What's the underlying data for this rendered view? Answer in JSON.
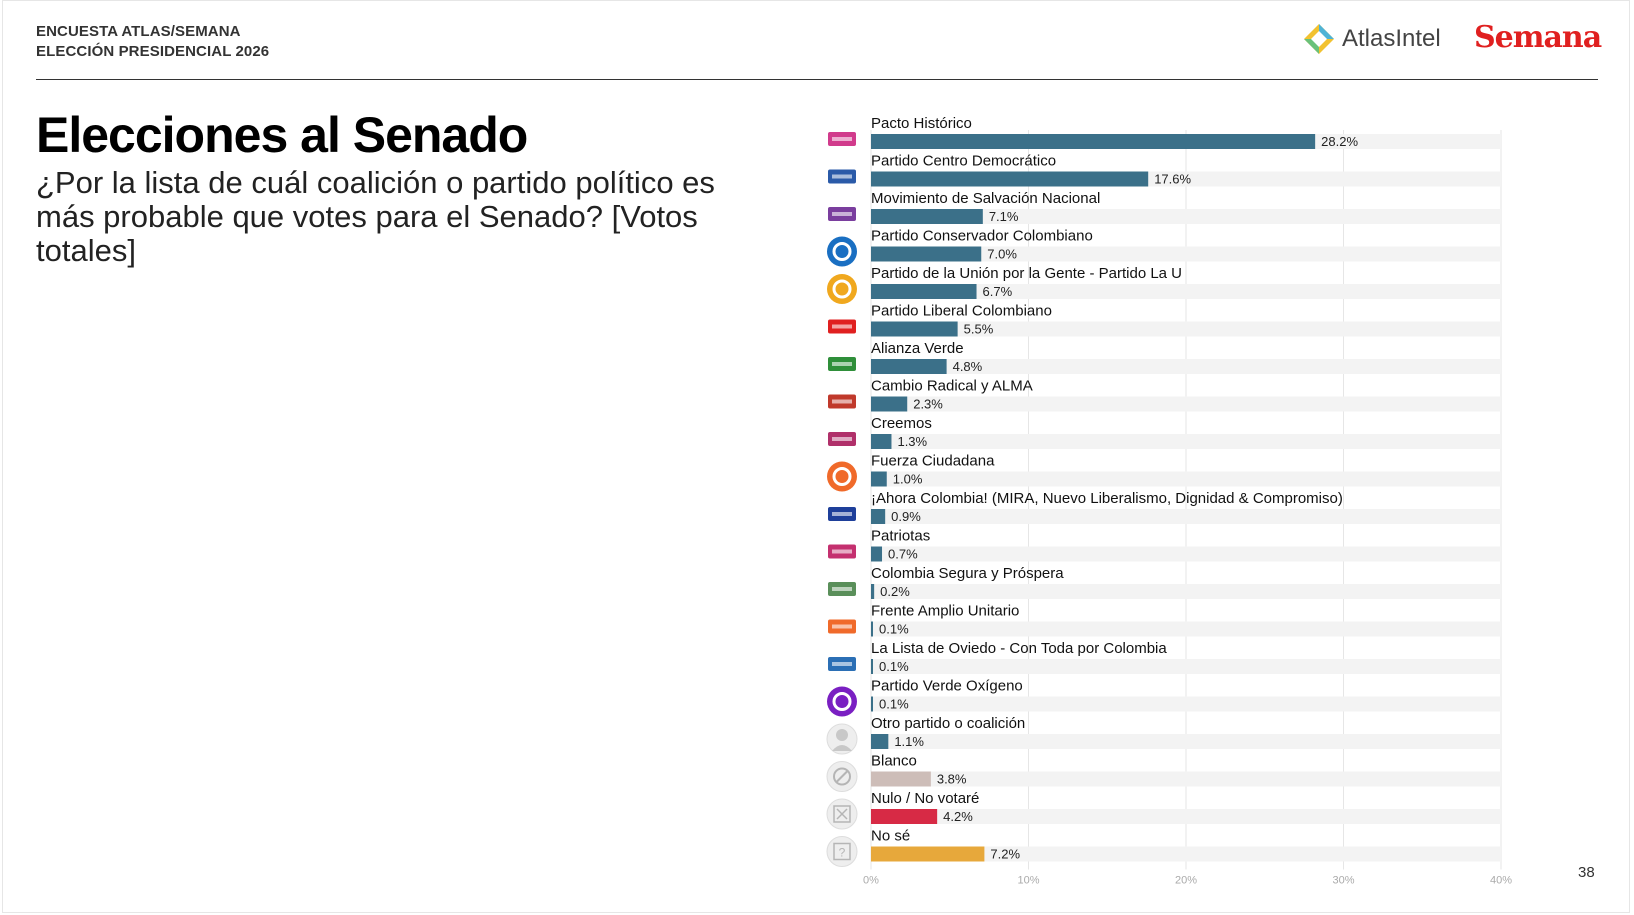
{
  "header": {
    "line1": "ENCUESTA ATLAS/SEMANA",
    "line2": "ELECCIÓN PRESIDENCIAL 2026",
    "logo_atlas": "AtlasIntel",
    "logo_semana": "Semana"
  },
  "title": "Elecciones al Senado",
  "question": "¿Por la lista de cuál coalición o partido político es más probable que votes para el Senado? [Votos totales]",
  "page_number": "38",
  "colors": {
    "default_bar": "#3b7089",
    "blanco": "#cdbdb8",
    "nulo": "#d72a45",
    "no_se": "#e7a83b",
    "track": "#f3f3f3"
  },
  "chart_data": {
    "type": "bar",
    "orientation": "horizontal",
    "title": "Elecciones al Senado",
    "xlim": [
      0,
      40
    ],
    "ticks": [
      "0%",
      "10%",
      "20%",
      "30%",
      "40%"
    ],
    "tick_values": [
      0,
      10,
      20,
      30,
      40
    ],
    "categories": [
      "Pacto Histórico",
      "Partido Centro Democrático",
      "Movimiento de Salvación Nacional",
      "Partido Conservador Colombiano",
      "Partido de la Unión por la Gente - Partido La U",
      "Partido Liberal Colombiano",
      "Alianza Verde",
      "Cambio Radical y ALMA",
      "Creemos",
      "Fuerza Ciudadana",
      "¡Ahora Colombia! (MIRA, Nuevo Liberalismo, Dignidad & Compromiso)",
      "Patriotas",
      "Colombia Segura y Próspera",
      "Frente Amplio Unitario",
      "La Lista de Oviedo - Con Toda por Colombia",
      "Partido Verde Oxígeno",
      "Otro partido o coalición",
      "Blanco",
      "Nulo / No votaré",
      "No sé"
    ],
    "values": [
      28.2,
      17.6,
      7.1,
      7.0,
      6.7,
      5.5,
      4.8,
      2.3,
      1.3,
      1.0,
      0.9,
      0.7,
      0.2,
      0.1,
      0.1,
      0.1,
      1.1,
      3.8,
      4.2,
      7.2
    ],
    "value_labels": [
      "28.2%",
      "17.6%",
      "7.1%",
      "7.0%",
      "6.7%",
      "5.5%",
      "4.8%",
      "2.3%",
      "1.3%",
      "1.0%",
      "0.9%",
      "0.7%",
      "0.2%",
      "0.1%",
      "0.1%",
      "0.1%",
      "1.1%",
      "3.8%",
      "4.2%",
      "7.2%"
    ],
    "bar_colors": [
      "#3b7089",
      "#3b7089",
      "#3b7089",
      "#3b7089",
      "#3b7089",
      "#3b7089",
      "#3b7089",
      "#3b7089",
      "#3b7089",
      "#3b7089",
      "#3b7089",
      "#3b7089",
      "#3b7089",
      "#3b7089",
      "#3b7089",
      "#3b7089",
      "#3b7089",
      "#cdbdb8",
      "#d72a45",
      "#e7a83b"
    ],
    "icons": [
      "pacto-historico-logo-icon",
      "centro-democratico-logo-icon",
      "salvacion-nacional-logo-icon",
      "partido-conservador-logo-icon",
      "partido-la-u-logo-icon",
      "partido-liberal-logo-icon",
      "alianza-verde-logo-icon",
      "cambio-radical-alma-logo-icon",
      "creemos-logo-icon",
      "fuerza-ciudadana-logo-icon",
      "ahora-colombia-logo-icon",
      "patriotas-logo-icon",
      "colombia-segura-logo-icon",
      "frente-amplio-logo-icon",
      "lista-oviedo-logo-icon",
      "verde-oxigeno-logo-icon",
      "person-icon",
      "blank-circle-slash-icon",
      "x-box-icon",
      "question-box-icon"
    ],
    "icon_colors": [
      "#d13b8c",
      "#2a5aa8",
      "#7a3e9e",
      "#1a6fc2",
      "#f0a81e",
      "#e02020",
      "#2f8f3a",
      "#c0392b",
      "#b0306a",
      "#f06a2a",
      "#1e3f9a",
      "#c4306f",
      "#5a8f5a",
      "#f06a2a",
      "#2b6fb5",
      "#7a1fc2",
      "#c8c8c8",
      "#c8c8c8",
      "#c8c8c8",
      "#c8c8c8"
    ],
    "xlabel": "",
    "ylabel": ""
  }
}
